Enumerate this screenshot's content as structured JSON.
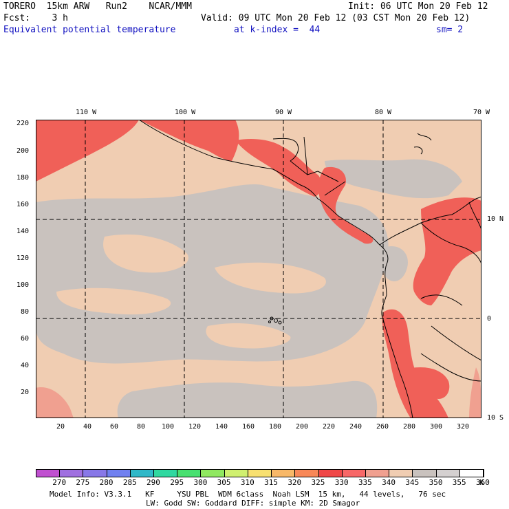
{
  "header": {
    "line1_left": "TORERO  15km ARW   Run2    NCAR/MMM",
    "line1_right": "Init: 06 UTC Mon 20 Feb 12",
    "line2_left": "Fcst:    3 h",
    "line2_right": "Valid: 09 UTC Mon 20 Feb 12 (03 CST Mon 20 Feb 12)",
    "line3_field": "Equivalent potential temperature",
    "line3_level": "at k-index =  44",
    "line3_sm": "sm= 2"
  },
  "map": {
    "lon_labels": [
      "110 W",
      "100 W",
      "90 W",
      "80 W",
      "70 W"
    ],
    "lat_labels": [
      "10 N",
      "0",
      "10 S"
    ],
    "y_ticks": [
      "220",
      "200",
      "180",
      "160",
      "140",
      "120",
      "100",
      "80",
      "60",
      "40",
      "20"
    ],
    "x_ticks": [
      "20",
      "40",
      "60",
      "80",
      "100",
      "120",
      "140",
      "160",
      "180",
      "200",
      "220",
      "240",
      "260",
      "280",
      "300",
      "320"
    ],
    "background_color": "#f0cdb2",
    "ocean_gray": "#c9c2be"
  },
  "colorbar": {
    "labels": [
      "270",
      "275",
      "280",
      "285",
      "290",
      "295",
      "300",
      "305",
      "310",
      "315",
      "320",
      "325",
      "330",
      "335",
      "340",
      "345",
      "350",
      "355",
      "360",
      "K"
    ],
    "colors": [
      "#c050d0",
      "#a070e0",
      "#8878e8",
      "#7080f0",
      "#30b8c8",
      "#30d8a0",
      "#48e070",
      "#90e860",
      "#d0f070",
      "#f8e070",
      "#f8b868",
      "#f88858",
      "#f04848",
      "#f86868",
      "#f0a090",
      "#f0cdb2",
      "#c9c2be",
      "#d4d0d0",
      "#ffffff"
    ]
  },
  "footer": {
    "line1": "Model Info: V3.3.1   KF     YSU PBL  WDM 6class  Noah LSM  15 km,   44 levels,   76 sec",
    "line2": "LW: Godd SW: Goddard DIFF: simple KM: 2D Smagor"
  }
}
